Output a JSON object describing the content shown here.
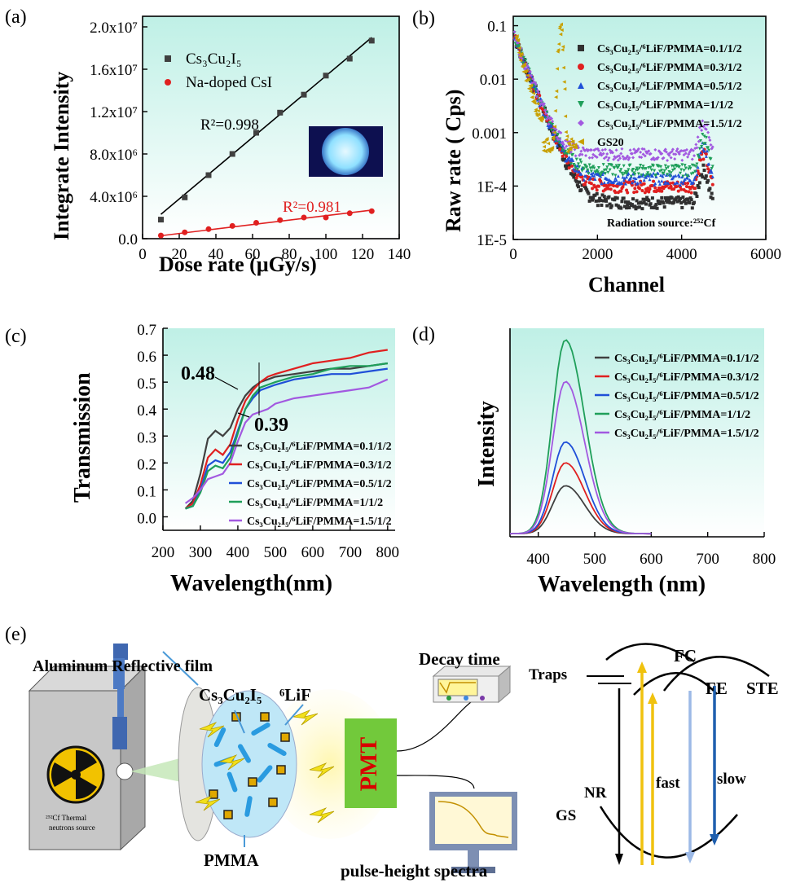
{
  "panel_labels": [
    "(a)",
    "(b)",
    "(c)",
    "(d)",
    "(e)"
  ],
  "chart_data": [
    {
      "panel": "(a)",
      "type": "scatter",
      "xlabel": "Dose rate (μGy/s)",
      "ylabel": "Integrate Intensity",
      "xlim": [
        0,
        140
      ],
      "ylim": [
        0,
        21000000
      ],
      "xticks": [
        "0",
        "20",
        "40",
        "60",
        "80",
        "100",
        "120",
        "140"
      ],
      "yticks": [
        "0.0",
        "4.0x10⁶",
        "8.0x10⁶",
        "1.2x10⁷",
        "1.6x10⁷",
        "2.0x10⁷"
      ],
      "background": "#cdf4ec",
      "legend_position": "top-left",
      "series": [
        {
          "name": "Cs₃Cu₂I₅",
          "color": "#404040",
          "marker": "square",
          "x": [
            10,
            23,
            36,
            49,
            62,
            75,
            88,
            100,
            113,
            125
          ],
          "y": [
            1800000,
            3900000,
            6000000,
            8000000,
            10000000,
            11900000,
            13600000,
            15400000,
            17000000,
            18700000
          ],
          "fit": [
            [
              10,
              2300000
            ],
            [
              125,
              19000000
            ]
          ],
          "annotation": "R²=0.998"
        },
        {
          "name": "Na-doped CsI",
          "color": "#e02020",
          "marker": "circle",
          "x": [
            10,
            23,
            36,
            49,
            62,
            75,
            88,
            100,
            113,
            125
          ],
          "y": [
            300000,
            600000,
            900000,
            1200000,
            1500000,
            1750000,
            2000000,
            2000000,
            2400000,
            2600000
          ],
          "fit": [
            [
              10,
              280000
            ],
            [
              125,
              2700000
            ]
          ],
          "annotation": "R²=0.981"
        }
      ]
    },
    {
      "panel": "(b)",
      "type": "scatter",
      "xlabel": "Channel",
      "ylabel": "Raw rate ( Cps)",
      "yscale": "log",
      "xlim": [
        0,
        6000
      ],
      "ylim": [
        1e-05,
        0.15
      ],
      "xticks": [
        "0",
        "2000",
        "4000",
        "6000"
      ],
      "yticks": [
        "0.1",
        "0.01",
        "0.001",
        "1E-4",
        "1E-5"
      ],
      "background": "#cdf4ec",
      "legend_position": "top-right",
      "annotation": "Radiation source:²⁵²Cf",
      "series": [
        {
          "name": "Cs₃Cu₂I₅/⁶LiF/PMMA=0.1/1/2",
          "color": "#303030",
          "marker": "square"
        },
        {
          "name": "Cs₃Cu₂I₅/⁶LiF/PMMA=0.3/1/2",
          "color": "#e02020",
          "marker": "circle"
        },
        {
          "name": "Cs₃Cu₂I₅/⁶LiF/PMMA=0.5/1/2",
          "color": "#1f4fd8",
          "marker": "triangle"
        },
        {
          "name": "Cs₃Cu₂I₅/⁶LiF/PMMA=1/1/2",
          "color": "#1f9f5a",
          "marker": "triangle-down"
        },
        {
          "name": "Cs₃Cu₂I₅/⁶LiF/PMMA=1.5/1/2",
          "color": "#a259e0",
          "marker": "diamond"
        },
        {
          "name": "GS20",
          "color": "#c8a000",
          "marker": "triangle-left"
        }
      ]
    },
    {
      "panel": "(c)",
      "type": "line",
      "xlabel": "Wavelength(nm)",
      "ylabel": "Transmission",
      "xlim": [
        200,
        820
      ],
      "ylim": [
        -0.05,
        0.7
      ],
      "xticks": [
        "200",
        "300",
        "400",
        "500",
        "600",
        "700",
        "800"
      ],
      "yticks": [
        "0.0",
        "0.1",
        "0.2",
        "0.3",
        "0.4",
        "0.5",
        "0.6",
        "0.7"
      ],
      "background": "#cdf4ec",
      "legend_position": "bottom-right",
      "annotations": [
        "0.48",
        "0.39"
      ],
      "x": [
        260,
        280,
        300,
        320,
        340,
        360,
        380,
        400,
        420,
        440,
        460,
        480,
        500,
        550,
        600,
        650,
        700,
        750,
        800
      ],
      "series": [
        {
          "name": "Cs₃Cu₂I₅/⁶LiF/PMMA=0.1/1/2",
          "color": "#404040",
          "y": [
            0.03,
            0.06,
            0.16,
            0.29,
            0.32,
            0.3,
            0.33,
            0.4,
            0.45,
            0.48,
            0.5,
            0.51,
            0.52,
            0.53,
            0.54,
            0.55,
            0.55,
            0.56,
            0.57
          ]
        },
        {
          "name": "Cs₃Cu₂I₅/⁶LiF/PMMA=0.3/1/2",
          "color": "#e02020",
          "y": [
            0.03,
            0.05,
            0.12,
            0.22,
            0.25,
            0.23,
            0.27,
            0.36,
            0.43,
            0.47,
            0.5,
            0.52,
            0.53,
            0.55,
            0.57,
            0.58,
            0.59,
            0.61,
            0.62
          ]
        },
        {
          "name": "Cs₃Cu₂I₅/⁶LiF/PMMA=0.5/1/2",
          "color": "#1f4fd8",
          "y": [
            0.03,
            0.04,
            0.1,
            0.19,
            0.21,
            0.2,
            0.24,
            0.32,
            0.4,
            0.44,
            0.47,
            0.48,
            0.49,
            0.51,
            0.52,
            0.53,
            0.53,
            0.54,
            0.55
          ]
        },
        {
          "name": "Cs₃Cu₂I₅/⁶LiF/PMMA=1/1/2",
          "color": "#1f9f5a",
          "y": [
            0.03,
            0.04,
            0.09,
            0.17,
            0.19,
            0.18,
            0.22,
            0.31,
            0.4,
            0.45,
            0.48,
            0.49,
            0.5,
            0.52,
            0.53,
            0.55,
            0.56,
            0.56,
            0.57
          ]
        },
        {
          "name": "Cs₃Cu₂I₅/⁶LiF/PMMA=1.5/1/2",
          "color": "#a259e0",
          "y": [
            0.05,
            0.07,
            0.1,
            0.14,
            0.15,
            0.16,
            0.2,
            0.28,
            0.35,
            0.38,
            0.39,
            0.4,
            0.42,
            0.44,
            0.45,
            0.46,
            0.47,
            0.48,
            0.51
          ]
        }
      ]
    },
    {
      "panel": "(d)",
      "type": "line",
      "xlabel": "Wavelength (nm)",
      "ylabel": "Intensity",
      "xlim": [
        350,
        800
      ],
      "ylim": [
        0,
        1.0
      ],
      "xticks": [
        "400",
        "500",
        "600",
        "700",
        "800"
      ],
      "background": "#cdf4ec",
      "legend_position": "top-right",
      "series": [
        {
          "name": "Cs₃Cu₂I₅/⁶LiF/PMMA=0.1/1/2",
          "color": "#404040",
          "peak": 0.23
        },
        {
          "name": "Cs₃Cu₂I₅/⁶LiF/PMMA=0.3/1/2",
          "color": "#e02020",
          "peak": 0.34
        },
        {
          "name": "Cs₃Cu₂I₅/⁶LiF/PMMA=0.5/1/2",
          "color": "#1f4fd8",
          "peak": 0.44
        },
        {
          "name": "Cs₃Cu₂I₅/⁶LiF/PMMA=1/1/2",
          "color": "#1f9f5a",
          "peak": 0.93
        },
        {
          "name": "Cs₃Cu₂I₅/⁶LiF/PMMA=1.5/1/2",
          "color": "#a259e0",
          "peak": 0.73
        }
      ]
    }
  ],
  "diagram": {
    "labels": {
      "reflective_film": "Aluminum Reflective film",
      "material": "Cs₃Cu₂I₅",
      "lif": "⁶LiF",
      "pmma": "PMMA",
      "pmt": "PMT",
      "decay": "Decay time",
      "pulse": "pulse-height spectra",
      "source_line1": "²⁵²Cf Thermal",
      "source_line2": "neutrons source"
    },
    "energy_levels": {
      "fc": "FC",
      "fe": "FE",
      "ste": "STE",
      "traps": "Traps",
      "nr": "NR",
      "gs": "GS",
      "fast": "fast",
      "slow": "slow"
    }
  }
}
